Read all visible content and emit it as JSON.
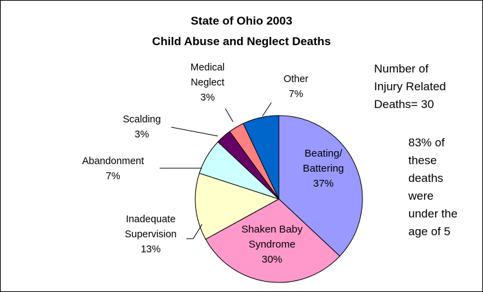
{
  "title": [
    "State of Ohio 2003",
    "Child Abuse and Neglect Deaths"
  ],
  "notes": {
    "count": "Number of\nInjury Related\nDeaths= 30",
    "age": "83% of\nthese\ndeaths\nwere\nunder the\nage of 5"
  },
  "chart_data": {
    "type": "pie",
    "title": "State of Ohio 2003 Child Abuse and Neglect Deaths",
    "slices": [
      {
        "label_lines": [
          "Beating/",
          "Battering",
          "37%"
        ],
        "value": 37,
        "color": "#9999ff"
      },
      {
        "label_lines": [
          "Shaken Baby",
          "Syndrome",
          "30%"
        ],
        "value": 30,
        "color": "#ff99cc"
      },
      {
        "label_lines": [
          "Inadequate",
          "Supervision",
          "13%"
        ],
        "value": 13,
        "color": "#ffffcc"
      },
      {
        "label_lines": [
          "Abandonment",
          "7%"
        ],
        "value": 7,
        "color": "#ccffff"
      },
      {
        "label_lines": [
          "Scalding",
          "3%"
        ],
        "value": 3,
        "color": "#660066"
      },
      {
        "label_lines": [
          "Medical",
          "Neglect",
          "3%"
        ],
        "value": 3,
        "color": "#ff8080"
      },
      {
        "label_lines": [
          "Other",
          "7%"
        ],
        "value": 7,
        "color": "#0066cc"
      }
    ]
  }
}
